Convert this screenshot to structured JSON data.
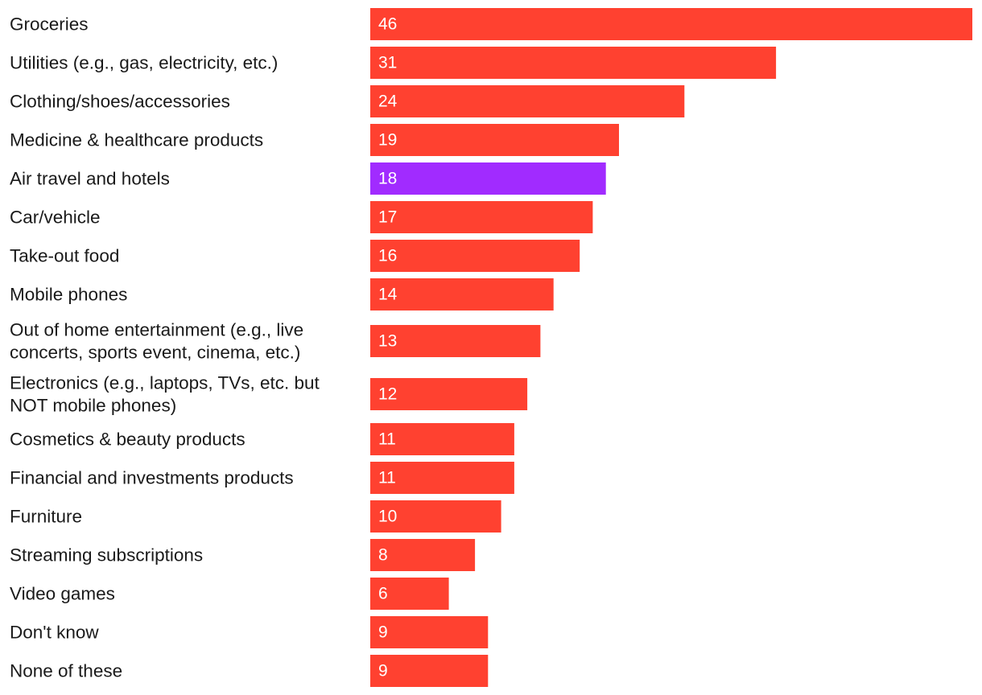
{
  "chart_data": {
    "type": "bar",
    "orientation": "horizontal",
    "categories": [
      [
        "Groceries"
      ],
      [
        "Utilities (e.g., gas, electricity, etc.)"
      ],
      [
        "Clothing/shoes/accessories"
      ],
      [
        "Medicine & healthcare products"
      ],
      [
        "Air travel and hotels"
      ],
      [
        "Car/vehicle"
      ],
      [
        "Take-out food"
      ],
      [
        "Mobile phones"
      ],
      [
        "Out of home entertainment (e.g., live",
        "concerts, sports event, cinema, etc.)"
      ],
      [
        "Electronics (e.g., laptops, TVs, etc. but",
        "NOT mobile phones)"
      ],
      [
        "Cosmetics & beauty products"
      ],
      [
        "Financial and investments products"
      ],
      [
        "Furniture"
      ],
      [
        "Streaming subscriptions"
      ],
      [
        "Video games"
      ],
      [
        "Don't know"
      ],
      [
        "None of these"
      ]
    ],
    "values": [
      46,
      31,
      24,
      19,
      18,
      17,
      16,
      14,
      13,
      12,
      11,
      11,
      10,
      8,
      6,
      9,
      9
    ],
    "highlight_index": 4,
    "xlim": [
      0,
      46
    ],
    "colors": {
      "bar": "#ff4130",
      "highlight": "#a12bff",
      "value_text": "#ffffff",
      "label_text": "#1a1a1a"
    }
  }
}
